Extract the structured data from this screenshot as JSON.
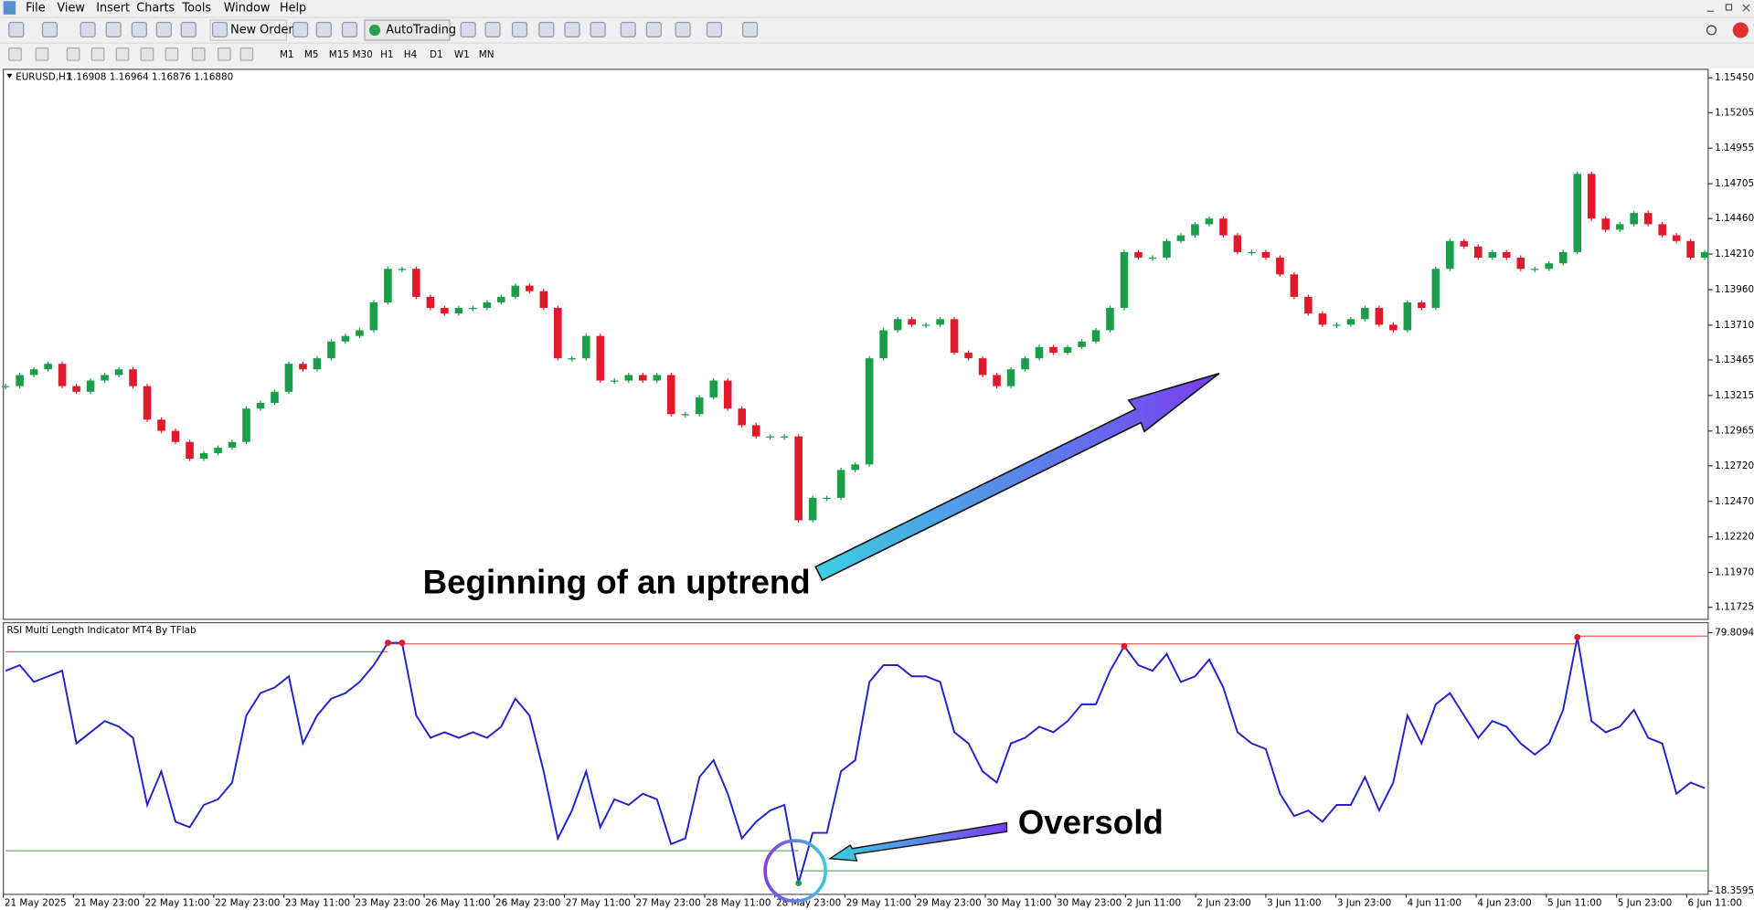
{
  "menu": [
    "File",
    "View",
    "Insert",
    "Charts",
    "Tools",
    "Window",
    "Help"
  ],
  "toolbar": {
    "new_order": "New Order",
    "autotrading": "AutoTrading",
    "timeframes": [
      "M1",
      "M5",
      "M15",
      "M30",
      "H1",
      "H4",
      "D1",
      "W1",
      "MN"
    ]
  },
  "time_labels": [
    "21 May 2025",
    "21 May 23:00",
    "22 May 11:00",
    "22 May 23:00",
    "23 May 11:00",
    "23 May 23:00",
    "26 May 11:00",
    "26 May 23:00",
    "27 May 11:00",
    "27 May 23:00",
    "28 May 11:00",
    "28 May 23:00",
    "29 May 11:00",
    "29 May 23:00",
    "30 May 11:00",
    "30 May 23:00",
    "2 Jun 11:00",
    "2 Jun 23:00",
    "3 Jun 11:00",
    "3 Jun 23:00",
    "4 Jun 11:00",
    "4 Jun 23:00",
    "5 Jun 11:00",
    "5 Jun 23:00",
    "6 Jun 11:00"
  ],
  "chart_data": [
    {
      "type": "candlestick",
      "title": "EURUSD,H1",
      "subtitle": "1.16908 1.16964 1.16876 1.16880",
      "up_color": "#1a9e4a",
      "down_color": "#e0192b",
      "values": [
        1.13281,
        1.13359,
        1.13399,
        1.13438,
        1.13281,
        1.13241,
        1.1332,
        1.13359,
        1.13399,
        1.13281,
        1.13045,
        1.12966,
        1.12888,
        1.1277,
        1.12809,
        1.12848,
        1.12888,
        1.13123,
        1.13163,
        1.13241,
        1.13438,
        1.13399,
        1.13477,
        1.13595,
        1.13634,
        1.13674,
        1.1387,
        1.14106,
        1.14106,
        1.13909,
        1.13831,
        1.13792,
        1.13831,
        1.13831,
        1.1387,
        1.13909,
        1.13988,
        1.13949,
        1.13831,
        1.13477,
        1.13477,
        1.13634,
        1.1332,
        1.1332,
        1.13359,
        1.1332,
        1.13359,
        1.13084,
        1.13084,
        1.13202,
        1.1332,
        1.13123,
        1.13006,
        1.12927,
        1.12927,
        1.12927,
        1.12337,
        1.12495,
        1.12495,
        1.12691,
        1.1273,
        1.13477,
        1.13674,
        1.13752,
        1.13713,
        1.13713,
        1.13752,
        1.13516,
        1.13477,
        1.13359,
        1.13281,
        1.13399,
        1.13477,
        1.13556,
        1.13516,
        1.13556,
        1.13595,
        1.13674,
        1.13831,
        1.14224,
        1.14185,
        1.14185,
        1.14302,
        1.14342,
        1.1442,
        1.1446,
        1.14342,
        1.14224,
        1.14224,
        1.14185,
        1.14067,
        1.13909,
        1.13792,
        1.13713,
        1.13713,
        1.13752,
        1.13831,
        1.13713,
        1.13674,
        1.1387,
        1.13831,
        1.14106,
        1.14302,
        1.14263,
        1.14185,
        1.14224,
        1.14185,
        1.14106,
        1.14106,
        1.14145,
        1.14224,
        1.14774,
        1.1446,
        1.14381,
        1.1442,
        1.14499,
        1.1442,
        1.14342,
        1.14302,
        1.14185,
        1.14224
      ],
      "ylim": [
        1.1164,
        1.1551
      ],
      "yticks": [
        {
          "value": 1.1545,
          "label": "1.15450"
        },
        {
          "value": 1.15205,
          "label": "1.15205"
        },
        1.14955,
        {
          "value": 1.14705,
          "label": "1.14705"
        },
        {
          "value": 1.1446,
          "label": "1.14460"
        },
        {
          "value": 1.1421,
          "label": "1.14210"
        },
        {
          "value": 1.1396,
          "label": "1.13960"
        },
        {
          "value": 1.1371,
          "label": "1.13710"
        },
        1.13465,
        1.13215,
        1.12965,
        {
          "value": 1.1272,
          "label": "1.12720"
        },
        {
          "value": 1.1247,
          "label": "1.12470"
        },
        {
          "value": 1.1222,
          "label": "1.12220"
        },
        {
          "value": 1.1197,
          "label": "1.11970"
        },
        1.11725
      ],
      "annotations": [
        "Beginning of an uptrend"
      ]
    },
    {
      "type": "line",
      "title": "RSI Multi Length Indicator MT4 By TFlab",
      "color": "#2323c8",
      "values": [
        70.77,
        72.1,
        68.11,
        69.44,
        70.77,
        53.48,
        56.14,
        58.8,
        57.47,
        54.81,
        38.85,
        46.83,
        34.86,
        33.53,
        38.85,
        40.18,
        44.17,
        60.13,
        65.45,
        66.78,
        69.44,
        53.48,
        60.13,
        64.12,
        65.45,
        68.11,
        72.1,
        77.42,
        77.42,
        60.13,
        54.81,
        56.14,
        54.81,
        56.14,
        54.81,
        57.47,
        64.12,
        60.13,
        46.83,
        30.87,
        37.52,
        46.83,
        33.53,
        40.18,
        38.85,
        41.51,
        40.18,
        29.54,
        30.87,
        45.5,
        49.49,
        41.51,
        30.87,
        34.86,
        37.52,
        38.85,
        20.24,
        32.2,
        32.2,
        46.83,
        49.49,
        68.11,
        72.1,
        72.1,
        69.44,
        69.44,
        68.11,
        56.14,
        53.48,
        46.83,
        44.17,
        53.48,
        54.81,
        57.47,
        56.14,
        58.8,
        62.79,
        62.79,
        70.77,
        76.62,
        72.1,
        70.77,
        74.76,
        68.11,
        69.44,
        73.43,
        66.78,
        56.14,
        53.48,
        52.15,
        41.51,
        36.19,
        37.52,
        34.86,
        38.85,
        38.85,
        45.5,
        37.52,
        44.17,
        60.13,
        53.48,
        62.79,
        65.45,
        60.13,
        54.81,
        58.8,
        57.47,
        53.48,
        50.82,
        53.48,
        61.46,
        78.75,
        58.8,
        56.14,
        57.47,
        61.46,
        54.81,
        53.48,
        41.51,
        44.17,
        42.84
      ],
      "levels": [
        {
          "from": 0,
          "to": 27,
          "value": 75.29,
          "color": "#e06060"
        },
        {
          "from": 27,
          "to": 111,
          "value": 77.15,
          "color": "#e06060"
        },
        {
          "from": 111,
          "to": 120,
          "value": 79.01,
          "color": "#e06060"
        },
        {
          "from": 0,
          "to": 56,
          "value": 27.95,
          "color": "#70aa70"
        },
        {
          "from": 56,
          "to": 120,
          "value": 23.16,
          "color": "#70aa70"
        }
      ],
      "markers": [
        {
          "index": 27,
          "color": "#e0192b"
        },
        {
          "index": 28,
          "color": "#e0192b"
        },
        {
          "index": 79,
          "color": "#e0192b"
        },
        {
          "index": 111,
          "color": "#e0192b"
        },
        {
          "index": 56,
          "color": "#1a9e4a"
        }
      ],
      "ylim": [
        18.35959,
        79.80947
      ],
      "yticks": [
        79.80947,
        18.35959
      ],
      "annotations": [
        "Oversold"
      ]
    }
  ]
}
